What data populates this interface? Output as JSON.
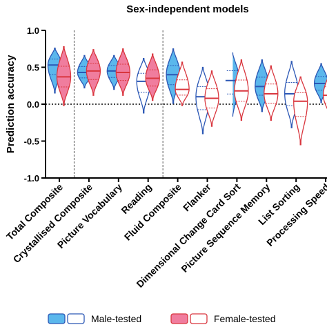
{
  "chart_data": {
    "type": "violin",
    "title": "Sex-independent models",
    "ylabel": "Prediction accuracy",
    "xlabel": "",
    "ylim": [
      -1.0,
      1.0
    ],
    "yticks": [
      "1.0",
      "0.5",
      "0.0",
      "-0.5",
      "-1.0"
    ],
    "reference_line": 0.0,
    "categories": [
      "Total Composite",
      "Crystallised Composite",
      "Picture Vocabulary",
      "Reading",
      "Fluid Composite",
      "Flanker",
      "Dimensional Change Card Sort",
      "Picture Sequence Memory",
      "List Sorting",
      "Processing Speed"
    ],
    "group_separators_after": [
      "Total Composite",
      "Reading"
    ],
    "series": [
      {
        "name": "Male-tested",
        "color": "#2b57b5",
        "fill": "#5bb7ec",
        "violins": [
          {
            "style": "filled",
            "min": 0.15,
            "max": 0.76,
            "median": 0.53
          },
          {
            "style": "filled",
            "min": 0.22,
            "max": 0.66,
            "median": 0.43
          },
          {
            "style": "filled",
            "min": 0.2,
            "max": 0.66,
            "median": 0.45
          },
          {
            "style": "outline",
            "min": -0.12,
            "max": 0.62,
            "median": 0.31
          },
          {
            "style": "filled",
            "min": 0.01,
            "max": 0.75,
            "median": 0.4
          },
          {
            "style": "outline",
            "min": -0.4,
            "max": 0.5,
            "median": 0.1
          },
          {
            "style": "filled",
            "min": -0.2,
            "max": 0.7,
            "median": 0.32
          },
          {
            "style": "filled",
            "min": -0.1,
            "max": 0.6,
            "median": 0.24
          },
          {
            "style": "outline",
            "min": -0.32,
            "max": 0.58,
            "median": 0.14
          },
          {
            "style": "filled",
            "min": 0.02,
            "max": 0.55,
            "median": 0.28
          }
        ]
      },
      {
        "name": "Female-tested",
        "color": "#d9363e",
        "fill": "#f07d9e",
        "violins": [
          {
            "style": "filled",
            "min": -0.02,
            "max": 0.78,
            "median": 0.37
          },
          {
            "style": "filled",
            "min": 0.12,
            "max": 0.74,
            "median": 0.45
          },
          {
            "style": "filled",
            "min": 0.12,
            "max": 0.75,
            "median": 0.43
          },
          {
            "style": "filled",
            "min": 0.05,
            "max": 0.68,
            "median": 0.35
          },
          {
            "style": "outline",
            "min": -0.02,
            "max": 0.57,
            "median": 0.2
          },
          {
            "style": "outline",
            "min": -0.3,
            "max": 0.45,
            "median": 0.08
          },
          {
            "style": "outline",
            "min": -0.22,
            "max": 0.6,
            "median": 0.18
          },
          {
            "style": "outline",
            "min": -0.22,
            "max": 0.52,
            "median": 0.14
          },
          {
            "style": "outline",
            "min": -0.55,
            "max": 0.37,
            "median": 0.04
          },
          {
            "style": "outline",
            "min": -0.18,
            "max": 0.45,
            "median": 0.12
          }
        ]
      }
    ],
    "legend": {
      "placement": "bottom",
      "entries": [
        {
          "series": "Male-tested",
          "label": "Male-tested"
        },
        {
          "series": "Female-tested",
          "label": "Female-tested"
        }
      ]
    }
  }
}
